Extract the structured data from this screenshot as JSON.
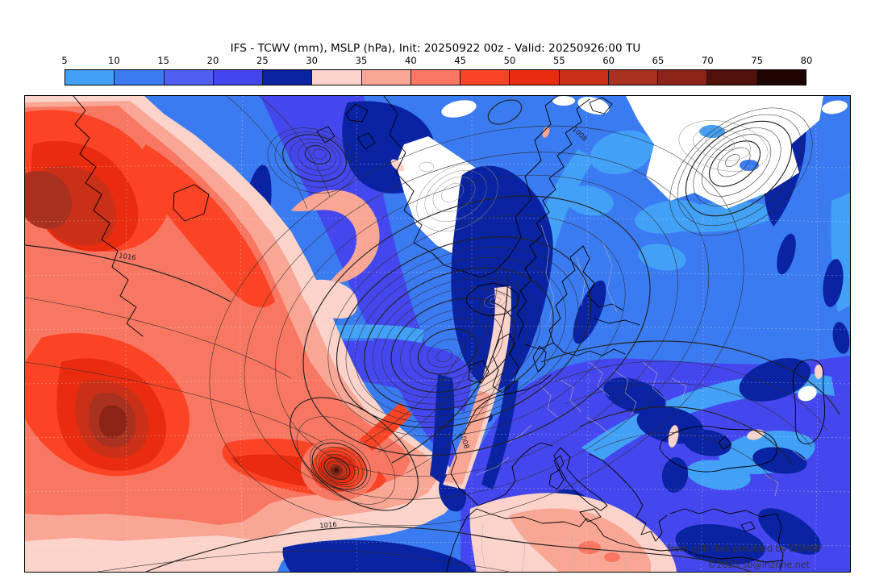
{
  "header": {
    "title": "IFS - TCWV (mm), MSLP (hPa), Init: 20250922 00z - Valid: 20250926:00 TU"
  },
  "colorbar": {
    "ticks": [
      "5",
      "10",
      "15",
      "20",
      "25",
      "30",
      "35",
      "40",
      "45",
      "50",
      "55",
      "60",
      "65",
      "70",
      "75",
      "80"
    ],
    "segment_colors": [
      "#42a0f6",
      "#3b7bf2",
      "#4f5ff2",
      "#4345ef",
      "#0a23a2",
      "#fbd3ca",
      "#f9a695",
      "#f87763",
      "#fb4426",
      "#e92c10",
      "#c93017",
      "#a93120",
      "#8c2317",
      "#511009",
      "#1e0502"
    ]
  },
  "map": {
    "attribution": {
      "line1": "from grib files provided by ECMWF",
      "line2": "©2025 sb@irlzone.net"
    },
    "contour_labels": [
      {
        "text": "1016"
      },
      {
        "text": "1016"
      },
      {
        "text": "1008"
      },
      {
        "text": "1008"
      }
    ]
  }
}
